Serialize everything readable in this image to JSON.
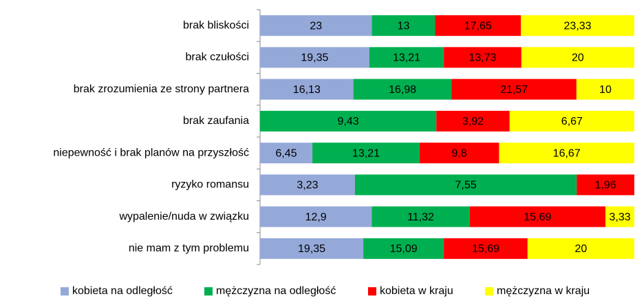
{
  "chart_data": {
    "type": "bar",
    "orientation": "horizontal",
    "stacking": "percent",
    "categories": [
      "brak bliskości",
      "brak czułości",
      "brak zrozumienia ze strony partnera",
      "brak zaufania",
      "niepewność i brak planów na przyszłość",
      "ryzyko romansu",
      "wypalenie/nuda w związku",
      "nie mam z tym problemu"
    ],
    "series": [
      {
        "name": "kobieta na odległość",
        "color": "#95a9d9",
        "values": [
          23,
          19.35,
          16.13,
          null,
          6.45,
          3.23,
          12.9,
          19.35
        ],
        "value_labels": [
          "23",
          "19,35",
          "16,13",
          null,
          "6,45",
          "3,23",
          "12,9",
          "19,35"
        ]
      },
      {
        "name": "mężczyzna na odległość",
        "color": "#00b050",
        "values": [
          13,
          13.21,
          16.98,
          9.43,
          13.21,
          7.55,
          11.32,
          15.09
        ],
        "value_labels": [
          "13",
          "13,21",
          "16,98",
          "9,43",
          "13,21",
          "7,55",
          "11,32",
          "15,09"
        ]
      },
      {
        "name": "kobieta w kraju",
        "color": "#ff0000",
        "values": [
          17.65,
          13.73,
          21.57,
          3.92,
          9.8,
          1.96,
          15.69,
          15.69
        ],
        "value_labels": [
          "17,65",
          "13,73",
          "21,57",
          "3,92",
          "9,8",
          "1,96",
          "15,69",
          "15,69"
        ]
      },
      {
        "name": "mężczyzna w kraju",
        "color": "#ffff00",
        "values": [
          23.33,
          20,
          10,
          6.67,
          16.67,
          null,
          3.33,
          20
        ],
        "value_labels": [
          "23,33",
          "20",
          "10",
          "6,67",
          "16,67",
          null,
          "3,33",
          "20"
        ]
      }
    ],
    "legend": "bottom"
  }
}
